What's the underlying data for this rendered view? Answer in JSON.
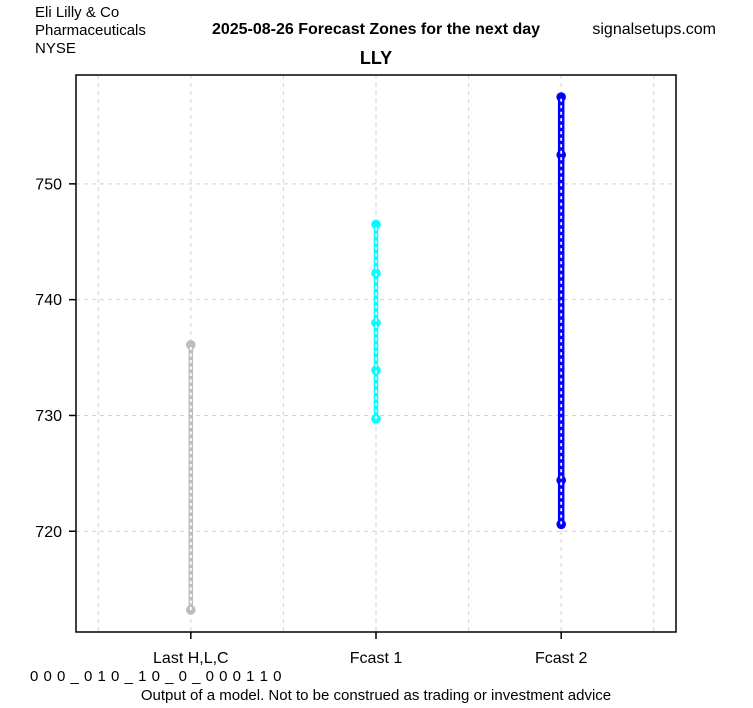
{
  "header": {
    "company": "Eli Lilly & Co",
    "sector": "Pharmaceuticals",
    "exchange": "NYSE",
    "title": "2025-08-26 Forecast Zones for the next day",
    "site": "signalsetups.com"
  },
  "chart_data": {
    "type": "scatter",
    "title": "LLY",
    "xlabel": "",
    "ylabel": "",
    "categories": [
      "Last H,L,C",
      "Fcast 1",
      "Fcast 2"
    ],
    "series": [
      {
        "name": "Last H,L,C",
        "x": 1,
        "color": "#BDBDBD",
        "thickness": 4.5,
        "range": [
          713.2,
          736.1
        ],
        "points": [
          736.1,
          713.2
        ]
      },
      {
        "name": "Fcast 1",
        "x": 2,
        "color": "#00FFFF",
        "thickness": 4.5,
        "range": [
          729.7,
          746.5
        ],
        "points": [
          746.5,
          742.3,
          738.0,
          733.9,
          729.7
        ]
      },
      {
        "name": "Fcast 2",
        "x": 3,
        "color": "#0000FF",
        "thickness": 6.5,
        "range": [
          720.6,
          757.5
        ],
        "points": [
          757.5,
          752.5,
          724.4,
          720.6
        ]
      }
    ],
    "ylim": [
      711.3,
      759.4
    ],
    "xlim": [
      0.38,
      3.62
    ],
    "yticks": [
      720,
      730,
      740,
      750
    ],
    "x_gridlines": [
      0.5,
      1,
      1.5,
      2,
      2.5,
      3,
      3.5
    ],
    "grid": true,
    "grid_color": "#D3D3D3",
    "marker": "filled-circle",
    "line_overlay": "white-dashed-center"
  },
  "footer": {
    "code": "0 0 0 _ 0 1 0 _ 1 0 _ 0 _ 0 0 0 1 1 0",
    "disclaimer": "Output of a model. Not to be construed as trading or investment advice"
  }
}
